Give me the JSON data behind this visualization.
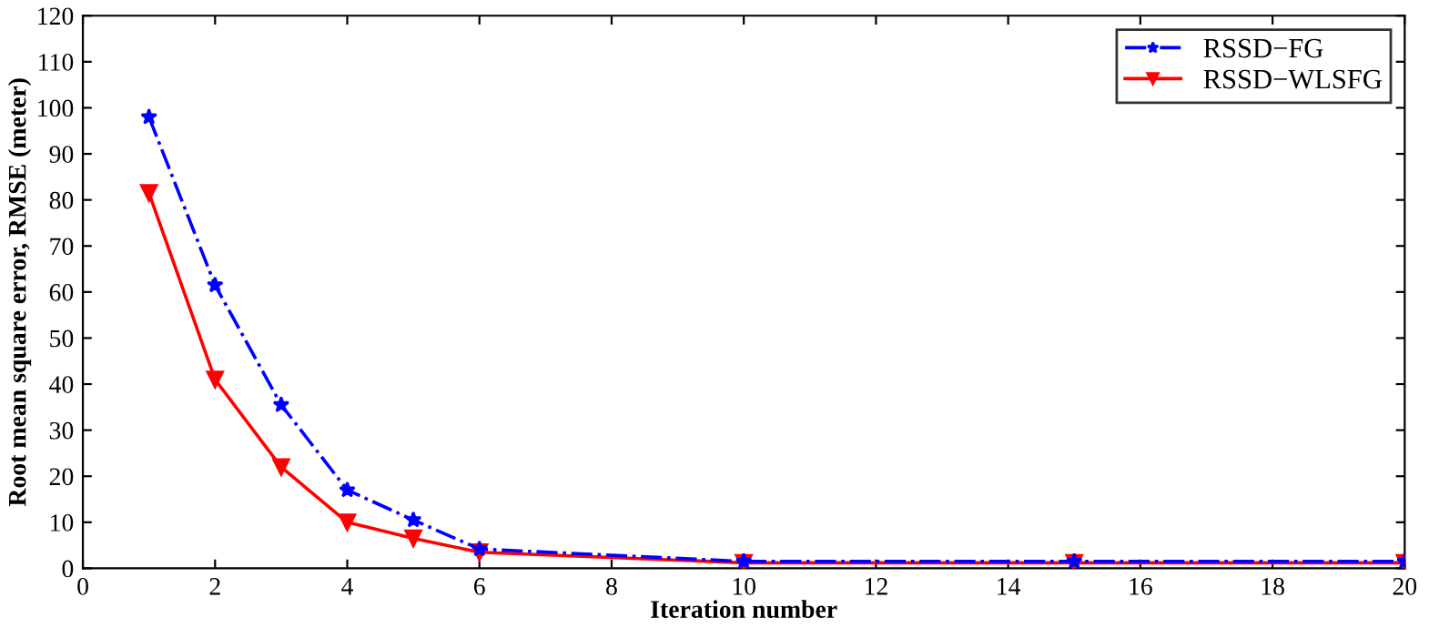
{
  "chart_data": {
    "type": "line",
    "xlabel": "Iteration number",
    "ylabel": "Root mean square error, RMSE (meter)",
    "x": [
      1,
      2,
      3,
      4,
      5,
      6,
      10,
      15,
      20
    ],
    "series": [
      {
        "name": "RSSD−FG",
        "color": "#0000ff",
        "marker": "star",
        "line_style": "dashdot",
        "values": [
          98,
          61.5,
          35.5,
          17,
          10.5,
          4.2,
          1.5,
          1.5,
          1.5
        ]
      },
      {
        "name": "RSSD−WLSFG",
        "color": "#ff0000",
        "marker": "triangle",
        "line_style": "solid",
        "values": [
          81.5,
          41,
          22,
          10,
          6.5,
          3.5,
          1.2,
          1.2,
          1.2
        ]
      }
    ],
    "xlim": [
      0,
      20
    ],
    "ylim": [
      0,
      120
    ],
    "xticks": [
      0,
      2,
      4,
      6,
      8,
      10,
      12,
      14,
      16,
      18,
      20
    ],
    "yticks": [
      0,
      10,
      20,
      30,
      40,
      50,
      60,
      70,
      80,
      90,
      100,
      110,
      120
    ],
    "grid": false,
    "legend": "top right"
  }
}
